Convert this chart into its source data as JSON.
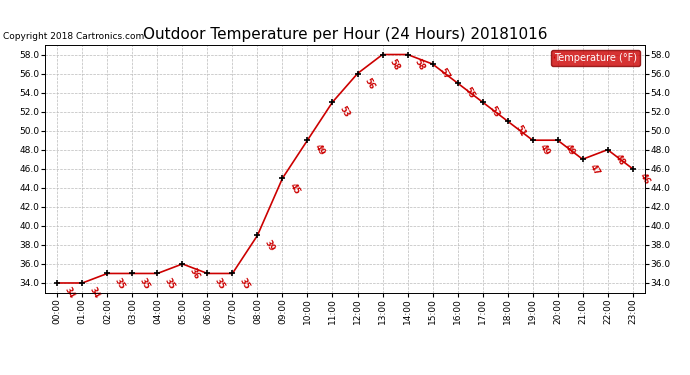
{
  "title": "Outdoor Temperature per Hour (24 Hours) 20181016",
  "copyright": "Copyright 2018 Cartronics.com",
  "legend_label": "Temperature (°F)",
  "hours": [
    "00:00",
    "01:00",
    "02:00",
    "03:00",
    "04:00",
    "05:00",
    "06:00",
    "07:00",
    "08:00",
    "09:00",
    "10:00",
    "11:00",
    "12:00",
    "13:00",
    "14:00",
    "15:00",
    "16:00",
    "17:00",
    "18:00",
    "19:00",
    "20:00",
    "21:00",
    "22:00",
    "23:00"
  ],
  "temps": [
    34,
    34,
    35,
    35,
    35,
    36,
    35,
    35,
    39,
    45,
    49,
    53,
    56,
    58,
    58,
    57,
    55,
    53,
    51,
    49,
    49,
    47,
    48,
    46
  ],
  "ylim": [
    33.0,
    59.0
  ],
  "yticks": [
    34.0,
    36.0,
    38.0,
    40.0,
    42.0,
    44.0,
    46.0,
    48.0,
    50.0,
    52.0,
    54.0,
    56.0,
    58.0
  ],
  "line_color": "#cc0000",
  "marker_color": "#000000",
  "label_color": "#cc0000",
  "legend_bg": "#cc0000",
  "legend_text_color": "#ffffff",
  "title_fontsize": 11,
  "copyright_fontsize": 6.5,
  "label_fontsize": 6,
  "tick_fontsize": 6.5,
  "bg_color": "#ffffff",
  "grid_color": "#bbbbbb"
}
